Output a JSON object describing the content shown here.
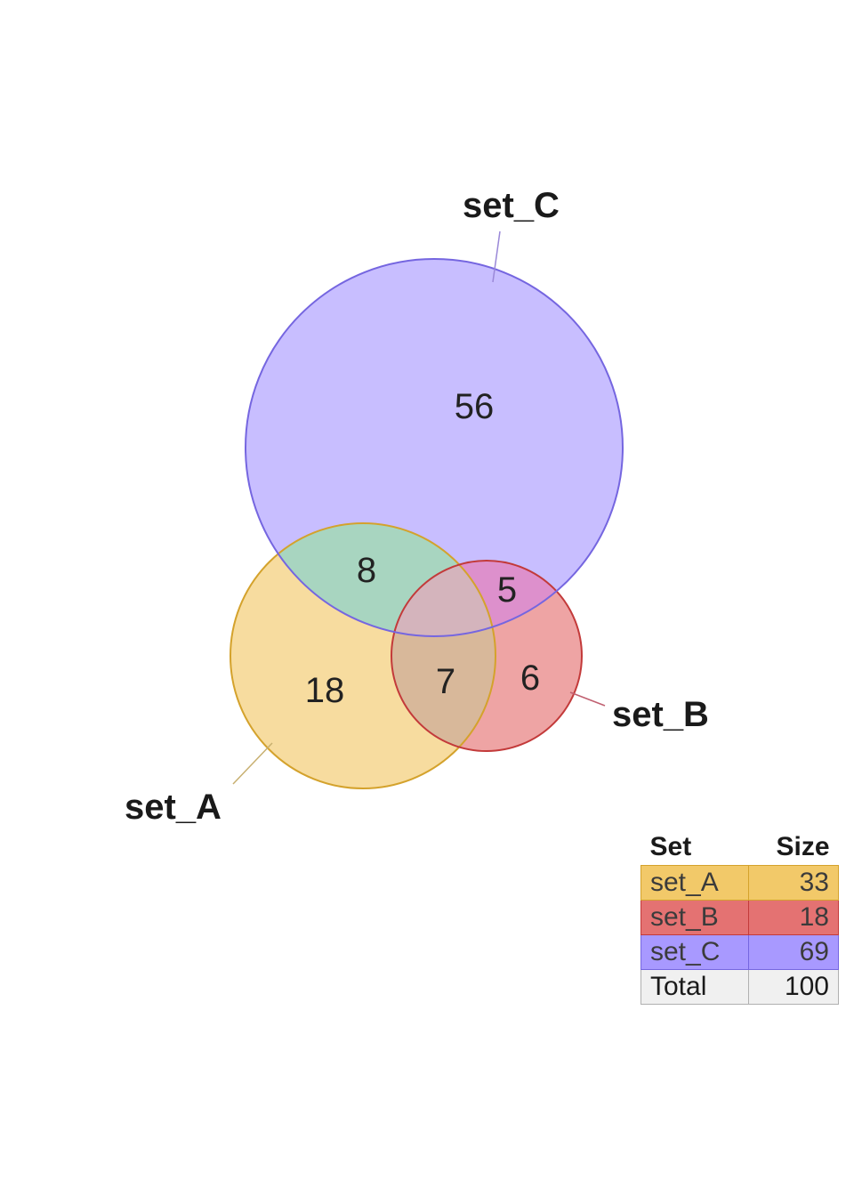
{
  "colors": {
    "set_A_fill": "#f0c050",
    "set_A_stroke": "#d4a22c",
    "set_B_fill": "#e05a5a",
    "set_B_stroke": "#c33a3a",
    "set_C_fill": "#9a88ff",
    "set_C_stroke": "#7566e0",
    "ac_fill": "#a8d5c0",
    "bc_fill": "#dd90cc",
    "total_fill": "#f0f0f0"
  },
  "sets": [
    {
      "id": "set_A",
      "label": "set_A"
    },
    {
      "id": "set_B",
      "label": "set_B"
    },
    {
      "id": "set_C",
      "label": "set_C"
    }
  ],
  "regions": {
    "c_only": "56",
    "a_c": "8",
    "b_c": "5",
    "a_only": "18",
    "a_b": "7",
    "b_only": "6"
  },
  "table": {
    "headers": [
      "Set",
      "Size"
    ],
    "rows": [
      {
        "name": "set_A",
        "size": "33"
      },
      {
        "name": "set_B",
        "size": "18"
      },
      {
        "name": "set_C",
        "size": "69"
      },
      {
        "name": "Total",
        "size": "100"
      }
    ]
  }
}
